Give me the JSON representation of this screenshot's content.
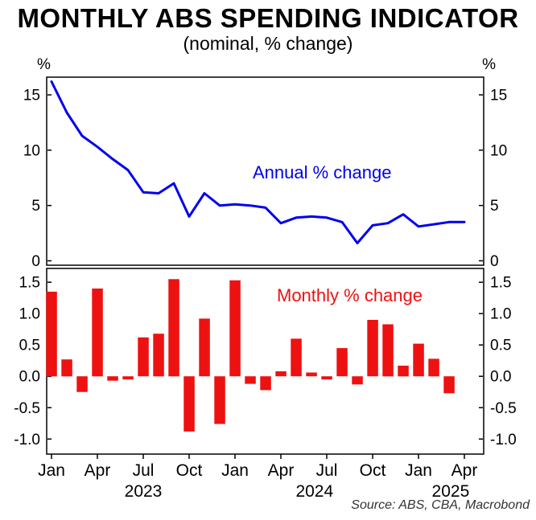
{
  "header": {
    "title": "MONTHLY ABS SPENDING INDICATOR",
    "subtitle": "(nominal, % change)"
  },
  "axes": {
    "left_unit": "%",
    "right_unit": "%"
  },
  "source": "Source: ABS, CBA, Macrobond",
  "chart_data": [
    {
      "type": "line",
      "name": "Annual % change",
      "color": "#0000ee",
      "ylim": [
        -0.4,
        16.6
      ],
      "ytick_values": [
        0,
        5,
        10,
        15
      ],
      "ytick_labels": [
        "0",
        "5",
        "10",
        "15"
      ],
      "months": [
        "Jan 2023",
        "Feb 2023",
        "Mar 2023",
        "Apr 2023",
        "May 2023",
        "Jun 2023",
        "Jul 2023",
        "Aug 2023",
        "Sep 2023",
        "Oct 2023",
        "Nov 2023",
        "Dec 2023",
        "Jan 2024",
        "Feb 2024",
        "Mar 2024",
        "Apr 2024",
        "May 2024",
        "Jun 2024",
        "Jul 2024",
        "Aug 2024",
        "Sep 2024",
        "Oct 2024",
        "Nov 2024",
        "Dec 2024",
        "Jan 2025",
        "Feb 2025",
        "Mar 2025",
        "Apr 2025"
      ],
      "values": [
        16.2,
        13.4,
        11.3,
        10.3,
        9.2,
        8.2,
        6.2,
        6.1,
        7.0,
        4.0,
        6.1,
        5.0,
        5.1,
        5.0,
        4.8,
        3.4,
        3.9,
        4.0,
        3.9,
        3.5,
        1.6,
        3.2,
        3.4,
        4.2,
        3.1,
        3.3,
        3.5,
        3.5
      ]
    },
    {
      "type": "bar",
      "name": "Monthly % change",
      "color": "#ee1111",
      "ylim": [
        -1.24,
        1.72
      ],
      "ytick_values": [
        -1.0,
        -0.5,
        0.0,
        0.5,
        1.0,
        1.5
      ],
      "ytick_labels": [
        "-1.0",
        "-0.5",
        "0.0",
        "0.5",
        "1.0",
        "1.5"
      ],
      "months": [
        "Jan 2023",
        "Feb 2023",
        "Mar 2023",
        "Apr 2023",
        "May 2023",
        "Jun 2023",
        "Jul 2023",
        "Aug 2023",
        "Sep 2023",
        "Oct 2023",
        "Nov 2023",
        "Dec 2023",
        "Jan 2024",
        "Feb 2024",
        "Mar 2024",
        "Apr 2024",
        "May 2024",
        "Jun 2024",
        "Jul 2024",
        "Aug 2024",
        "Sep 2024",
        "Oct 2024",
        "Nov 2024",
        "Dec 2024",
        "Jan 2025",
        "Feb 2025",
        "Mar 2025"
      ],
      "values": [
        1.35,
        0.27,
        -0.25,
        1.4,
        -0.07,
        -0.05,
        0.62,
        0.68,
        1.55,
        -0.88,
        0.92,
        -0.76,
        1.53,
        -0.12,
        -0.22,
        0.08,
        0.6,
        0.06,
        -0.05,
        0.45,
        -0.13,
        0.9,
        0.83,
        0.17,
        0.52,
        0.28,
        -0.27
      ]
    }
  ],
  "x_axis": {
    "n_months": 28,
    "tick_labels": [
      "Jan",
      "Apr",
      "Jul",
      "Oct",
      "Jan",
      "Apr",
      "Jul",
      "Oct",
      "Jan",
      "Apr"
    ],
    "tick_month_indices": [
      0,
      3,
      6,
      9,
      12,
      15,
      18,
      21,
      24,
      27
    ],
    "year_labels": [
      {
        "label": "2023",
        "pos": 6.0
      },
      {
        "label": "2024",
        "pos": 17.2
      },
      {
        "label": "2025",
        "pos": 26.1
      }
    ]
  }
}
